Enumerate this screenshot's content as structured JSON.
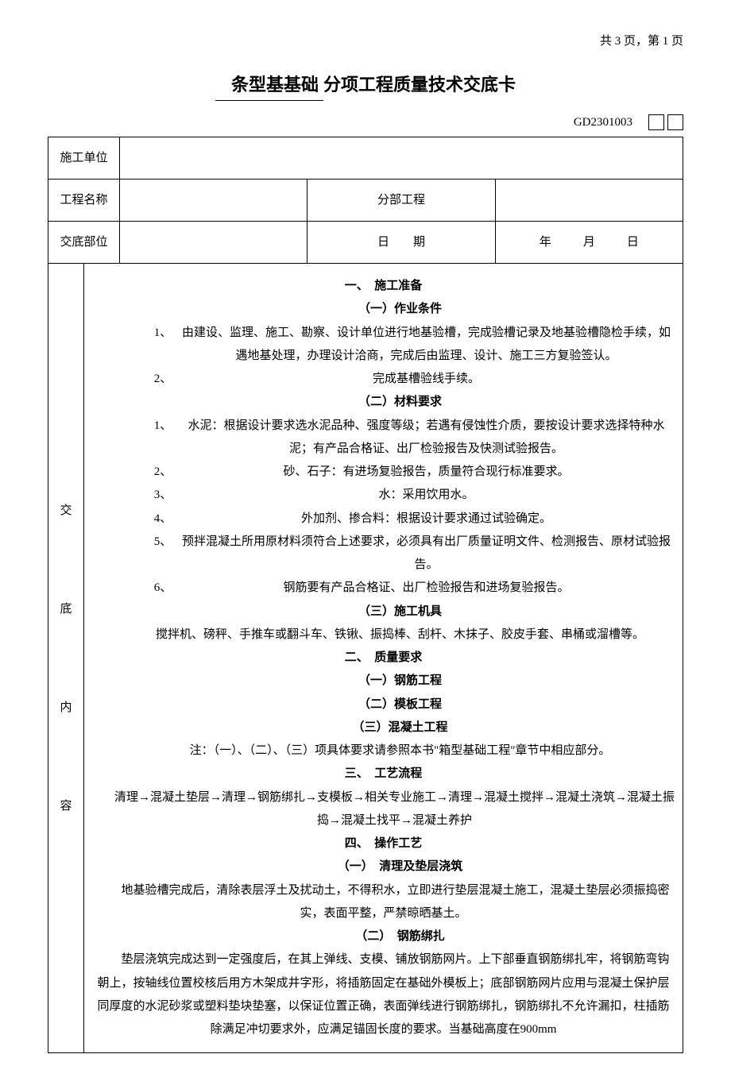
{
  "page_info": "共 3 页，第 1 页",
  "title_prefix": "条型基基础",
  "title_suffix": "分项工程质量技术交底卡",
  "doc_code": "GD2301003",
  "row1": {
    "label": "施工单位",
    "value": ""
  },
  "row2": {
    "label1": "工程名称",
    "value1": "",
    "label2": "分部工程",
    "value2": ""
  },
  "row3": {
    "label1": "交底部位",
    "value1": "",
    "label2": "日　　期",
    "y": "年",
    "m": "月",
    "d": "日"
  },
  "side": {
    "c1": "交",
    "c2": "底",
    "c3": "内",
    "c4": "容"
  },
  "sec1": {
    "head": "一、　施工准备",
    "sub1": "（一）作业条件",
    "i1n": "1、",
    "i1t": "由建设、监理、施工、勘察、设计单位进行地基验槽，完成验槽记录及地基验槽隐检手续，如遇地基处理，办理设计洽商，完成后由监理、设计、施工三方复验签认。",
    "i2n": "2、",
    "i2t": "完成基槽验线手续。",
    "sub2": "（二）材料要求",
    "m1n": "1、",
    "m1t": "水泥：根据设计要求选水泥品种、强度等级；若遇有侵蚀性介质，要按设计要求选择特种水泥；有产品合格证、出厂检验报告及快测试验报告。",
    "m2n": "2、",
    "m2t": "砂、石子：有进场复验报告，质量符合现行标准要求。",
    "m3n": "3、",
    "m3t": "水：采用饮用水。",
    "m4n": "4、",
    "m4t": "外加剂、掺合料：根据设计要求通过试验确定。",
    "m5n": "5、",
    "m5t": "预拌混凝土所用原材料须符合上述要求，必须具有出厂质量证明文件、检测报告、原材试验报告。",
    "m6n": "6、",
    "m6t": "钢筋要有产品合格证、出厂检验报告和进场复验报告。",
    "sub3": "（三）施工机具",
    "tools": "搅拌机、磅秤、手推车或翻斗车、铁锹、振捣棒、刮杆、木抹子、胶皮手套、串桶或溜槽等。"
  },
  "sec2": {
    "head": "二、　质量要求",
    "q1": "（一）钢筋工程",
    "q2": "（二）模板工程",
    "q3": "（三）混凝土工程",
    "note": "注：（一）、（二）、（三）项具体要求请参照本书\"箱型基础工程\"章节中相应部分。"
  },
  "sec3": {
    "head": "三、　工艺流程",
    "flow": "清理→混凝土垫层→清理→钢筋绑扎→支模板→相关专业施工→清理→混凝土搅拌→混凝土浇筑→混凝土振捣→混凝土找平→混凝土养护"
  },
  "sec4": {
    "head": "四、　操作工艺",
    "s1": "（一）　清理及垫层浇筑",
    "p1": "地基验槽完成后，清除表层浮土及扰动土，不得积水，立即进行垫层混凝土施工，混凝土垫层必须振捣密实，表面平整，严禁晾晒基土。",
    "s2": "（二）　钢筋绑扎",
    "p2": "垫层浇筑完成达到一定强度后，在其上弹线、支模、铺放钢筋网片。上下部垂直钢筋绑扎牢，将钢筋弯钩朝上，按轴线位置校核后用方木架成井字形，将插筋固定在基础外模板上；底部钢筋网片应用与混凝土保护层同厚度的水泥砂浆或塑料垫块垫塞，以保证位置正确，表面弹线进行钢筋绑扎，钢筋绑扎不允许漏扣，柱插筋除满足冲切要求外，应满足锚固长度的要求。当基础高度在900mm"
  }
}
